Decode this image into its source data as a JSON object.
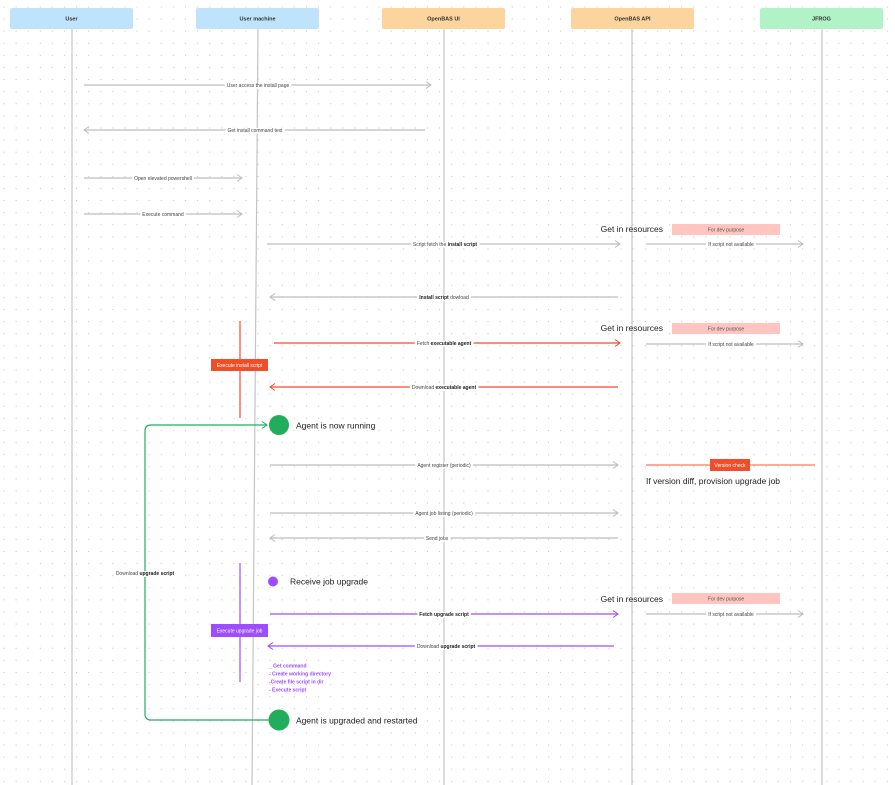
{
  "participants": [
    {
      "label": "User",
      "color": "#bfe3fb"
    },
    {
      "label": "User machine",
      "color": "#bfe3fb"
    },
    {
      "label": "OpenBAS UI",
      "color": "#fcd49e"
    },
    {
      "label": "OpenBAS API",
      "color": "#fcd49e"
    },
    {
      "label": "JFROG",
      "color": "#b1f2c6"
    }
  ],
  "colors": {
    "gray": "#bdbdbd",
    "red": "#f04e2a",
    "purple": "#9b4dff",
    "green": "#22ad5c",
    "pink": "#fec5c1"
  },
  "messages": {
    "m1": "User access the install page",
    "m2": "Get install command text",
    "m3": "Open elevated powershell",
    "m4": "Execute  command",
    "m5a": "Script fetch the ",
    "m5b": "install script",
    "m6a": "Install script",
    "m6b": " dowload",
    "m7a": "Fetch ",
    "m7b": "executable agent",
    "m8a": "Download ",
    "m8b": "executable agent",
    "m9": "Agent register (periodic)",
    "m10": "Agent job listing  (periodic)",
    "m11": "Send jobs",
    "m12a": "Fetch ",
    "m12b": "upgrade script",
    "m13a": "Download ",
    "m13b": "upgrade script",
    "fallback": "If script not available",
    "loop_a": "Download ",
    "loop_b": "upgrade script"
  },
  "notes": {
    "get_resources": "Get in resources",
    "dev_purpose": "For dev purpose",
    "execute_install": "Execute install script",
    "agent_running": "Agent is now running",
    "version_check": "Version check",
    "version_diff": "If version diff, provision upgrade job",
    "receive_job": "Receive job upgrade",
    "execute_upgrade": "Execute upgrade job",
    "steps": [
      "_ Get command",
      "- Create working directory",
      "-Create file script in dir",
      "- Execute script"
    ],
    "agent_upgraded": "Agent is upgraded and restarted"
  }
}
